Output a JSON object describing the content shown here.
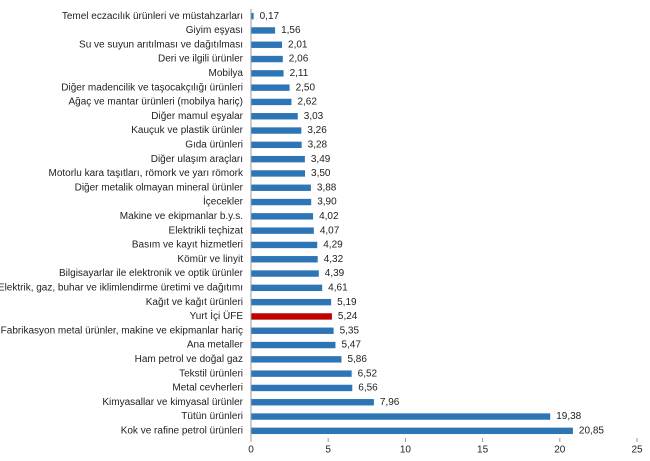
{
  "chart_data": {
    "type": "hbar",
    "categories": [
      "Temel eczacılık ürünleri ve müstahzarları",
      "Giyim eşyası",
      "Su ve suyun arıtılması ve dağıtılması",
      "Deri ve ilgili ürünler",
      "Mobilya",
      "Diğer madencilik ve taşocakçılığı ürünleri",
      "Ağaç ve mantar ürünleri (mobilya hariç)",
      "Diğer mamul eşyalar",
      "Kauçuk ve plastik ürünler",
      "Gıda ürünleri",
      "Diğer ulaşım araçları",
      "Motorlu kara taşıtları, römork ve yarı römork",
      "Diğer metalik olmayan mineral ürünler",
      "İçecekler",
      "Makine ve ekipmanlar b.y.s.",
      "Elektrikli teçhizat",
      "Basım ve kayıt hizmetleri",
      "Kömür ve linyit",
      "Bilgisayarlar ile elektronik ve optik ürünler",
      "Elektrik, gaz, buhar ve iklimlendirme üretimi ve dağıtımı",
      "Kağıt ve kağıt ürünleri",
      "Yurt İçi ÜFE",
      "Fabrikasyon metal ürünler, makine ve ekipmanlar hariç",
      "Ana metaller",
      "Ham petrol ve doğal gaz",
      "Tekstil ürünleri",
      "Metal cevherleri",
      "Kimyasallar ve kimyasal ürünler",
      "Tütün ürünleri",
      "Kok ve rafine petrol ürünleri"
    ],
    "values": [
      0.17,
      1.56,
      2.01,
      2.06,
      2.11,
      2.5,
      2.62,
      3.03,
      3.26,
      3.28,
      3.49,
      3.5,
      3.88,
      3.9,
      4.02,
      4.07,
      4.29,
      4.32,
      4.39,
      4.61,
      5.19,
      5.24,
      5.35,
      5.47,
      5.86,
      6.52,
      6.56,
      7.96,
      19.38,
      20.85
    ],
    "value_labels": [
      "0,17",
      "1,56",
      "2,01",
      "2,06",
      "2,11",
      "2,50",
      "2,62",
      "3,03",
      "3,26",
      "3,28",
      "3,49",
      "3,50",
      "3,88",
      "3,90",
      "4,02",
      "4,07",
      "4,29",
      "4,32",
      "4,39",
      "4,61",
      "5,19",
      "5,24",
      "5,35",
      "5,47",
      "5,86",
      "6,52",
      "6,56",
      "7,96",
      "19,38",
      "20,85"
    ],
    "colors": [
      "#2e75b6",
      "#2e75b6",
      "#2e75b6",
      "#2e75b6",
      "#2e75b6",
      "#2e75b6",
      "#2e75b6",
      "#2e75b6",
      "#2e75b6",
      "#2e75b6",
      "#2e75b6",
      "#2e75b6",
      "#2e75b6",
      "#2e75b6",
      "#2e75b6",
      "#2e75b6",
      "#2e75b6",
      "#2e75b6",
      "#2e75b6",
      "#2e75b6",
      "#2e75b6",
      "#c00000",
      "#2e75b6",
      "#2e75b6",
      "#2e75b6",
      "#2e75b6",
      "#2e75b6",
      "#2e75b6",
      "#2e75b6",
      "#2e75b6"
    ],
    "xlim": [
      0,
      25
    ],
    "xticks": [
      0,
      5,
      10,
      15,
      20,
      25
    ],
    "grid": false
  }
}
